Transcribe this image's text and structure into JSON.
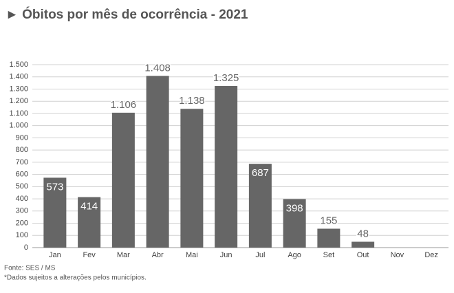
{
  "chart_data": {
    "type": "bar",
    "title": "► Óbitos por mês de ocorrência - 2021",
    "categories": [
      "Jan",
      "Fev",
      "Mar",
      "Abr",
      "Mai",
      "Jun",
      "Jul",
      "Ago",
      "Set",
      "Out",
      "Nov",
      "Dez"
    ],
    "values": [
      573,
      414,
      1106,
      1408,
      1138,
      1325,
      687,
      398,
      155,
      48,
      null,
      null
    ],
    "value_labels": [
      "573",
      "414",
      "1.106",
      "1.408",
      "1.138",
      "1.325",
      "687",
      "398",
      "155",
      "48",
      null,
      null
    ],
    "color": "#666666",
    "ylim": [
      0,
      1500
    ],
    "yticks": [
      0,
      100,
      200,
      300,
      400,
      500,
      600,
      700,
      800,
      900,
      {
        "value": 1000,
        "label": "1.000"
      },
      {
        "value": 1100,
        "label": "1.100"
      },
      {
        "value": 1200,
        "label": "1.200"
      },
      {
        "value": 1300,
        "label": "1.300"
      },
      {
        "value": 1400,
        "label": "1.400"
      },
      {
        "value": 1500,
        "label": "1.500"
      }
    ],
    "grid": true,
    "source": "Fonte: SES / MS",
    "note": "*Dados sujeitos a alterações pelos municípios."
  }
}
